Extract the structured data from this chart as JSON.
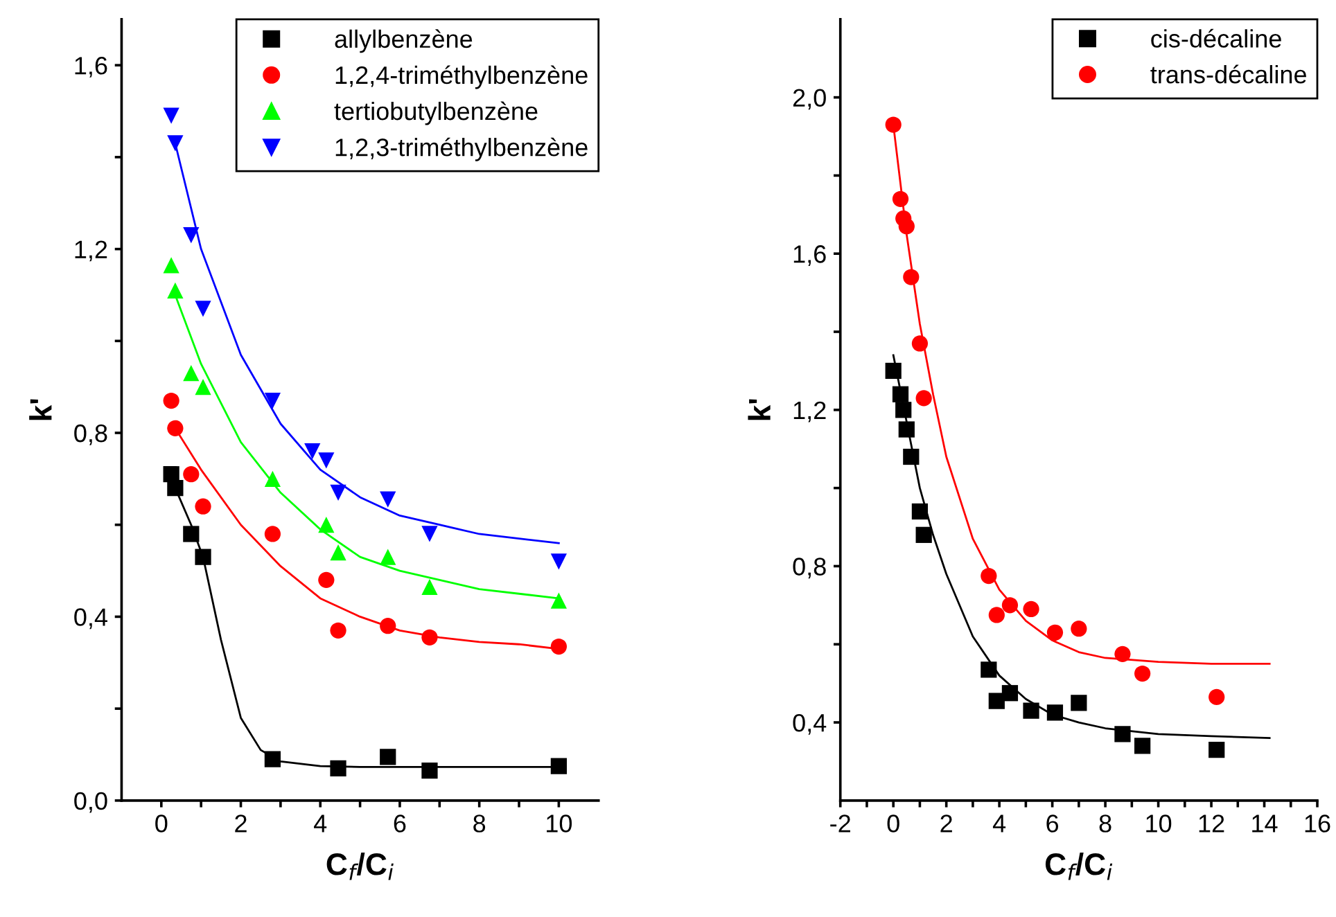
{
  "chart_data": [
    {
      "type": "scatter",
      "xlabel": "C$_{f}$/C$_{i}$",
      "ylabel": "k'",
      "legend": "top right",
      "grid": false,
      "xlim": [
        -1,
        11
      ],
      "ylim": [
        0,
        1.7
      ],
      "xticks": [
        0,
        {
          "value": 1,
          "label": null
        },
        2,
        {
          "value": 3,
          "label": null
        },
        4,
        {
          "value": 5,
          "label": null
        },
        6,
        {
          "value": 7,
          "label": null
        },
        8,
        {
          "value": 9,
          "label": null
        },
        10
      ],
      "yticks": [
        {
          "value": 0,
          "label": "0,0"
        },
        {
          "value": 0.2,
          "label": null
        },
        {
          "value": 0.4,
          "label": "0,4"
        },
        {
          "value": 0.6,
          "label": null
        },
        {
          "value": 0.8,
          "label": "0,8"
        },
        {
          "value": 1.0,
          "label": null
        },
        {
          "value": 1.2,
          "label": "1,2"
        },
        {
          "value": 1.4,
          "label": null
        },
        {
          "value": 1.6,
          "label": "1,6"
        }
      ],
      "series": [
        {
          "name": "allylbenzène",
          "color": "#000000",
          "marker": "square",
          "x": [
            0.25,
            0.35,
            0.75,
            1.05,
            2.8,
            4.45,
            5.7,
            6.75,
            10
          ],
          "values": [
            0.71,
            0.68,
            0.58,
            0.53,
            0.09,
            0.07,
            0.095,
            0.065,
            0.075
          ]
        },
        {
          "name": "1,2,4-triméthylbenzène",
          "color": "#ff0000",
          "marker": "circle",
          "x": [
            0.25,
            0.35,
            0.75,
            1.05,
            2.8,
            4.15,
            4.45,
            5.7,
            6.75,
            10
          ],
          "values": [
            0.87,
            0.81,
            0.71,
            0.64,
            0.58,
            0.48,
            0.37,
            0.38,
            0.355,
            0.335
          ]
        },
        {
          "name": "tertiobutylbenzène",
          "color": "#00ff00",
          "marker": "triangle",
          "x": [
            0.25,
            0.35,
            0.75,
            1.05,
            2.8,
            4.15,
            4.45,
            5.7,
            6.75,
            10
          ],
          "values": [
            1.165,
            1.11,
            0.93,
            0.9,
            0.7,
            0.6,
            0.54,
            0.53,
            0.465,
            0.435
          ]
        },
        {
          "name": "1,2,3-triméthylbenzène",
          "color": "#0000ff",
          "marker": "triangle_down",
          "x": [
            0.25,
            0.35,
            0.75,
            1.05,
            2.8,
            3.8,
            4.15,
            4.45,
            5.7,
            6.75,
            10
          ],
          "values": [
            1.49,
            1.43,
            1.23,
            1.07,
            0.87,
            0.76,
            0.74,
            0.67,
            0.655,
            0.58,
            0.52
          ]
        },
        {
          "type": "line",
          "color": "#000000",
          "x": [
            0.35,
            0.75,
            1.05,
            1.5,
            2,
            2.5,
            3,
            4,
            5,
            10
          ],
          "values": [
            0.68,
            0.6,
            0.53,
            0.35,
            0.18,
            0.11,
            0.085,
            0.075,
            0.073,
            0.073
          ]
        },
        {
          "type": "line",
          "color": "#ff0000",
          "x": [
            0.35,
            1,
            2,
            3,
            4,
            5,
            6,
            7,
            8,
            9,
            10
          ],
          "values": [
            0.81,
            0.72,
            0.6,
            0.51,
            0.44,
            0.4,
            0.37,
            0.355,
            0.345,
            0.34,
            0.33
          ]
        },
        {
          "type": "line",
          "color": "#00ff00",
          "x": [
            0.35,
            1,
            2,
            3,
            4,
            5,
            6,
            7,
            8,
            9,
            10
          ],
          "values": [
            1.1,
            0.95,
            0.78,
            0.67,
            0.59,
            0.53,
            0.5,
            0.48,
            0.46,
            0.45,
            0.44
          ]
        },
        {
          "type": "line",
          "color": "#0000ff",
          "x": [
            0.35,
            1,
            2,
            3,
            4,
            5,
            6,
            7,
            8,
            9,
            10
          ],
          "values": [
            1.43,
            1.2,
            0.97,
            0.82,
            0.72,
            0.66,
            0.62,
            0.6,
            0.58,
            0.57,
            0.56
          ]
        }
      ]
    },
    {
      "type": "scatter",
      "xlabel": "C$_{f}$/C$_{i}$",
      "ylabel": "k'",
      "legend": "top right",
      "grid": false,
      "xlim": [
        -2,
        16
      ],
      "ylim": [
        0.2,
        2.2
      ],
      "xticks": [
        -2,
        {
          "value": -1,
          "label": null
        },
        0,
        {
          "value": 1,
          "label": null
        },
        2,
        {
          "value": 3,
          "label": null
        },
        4,
        {
          "value": 5,
          "label": null
        },
        6,
        {
          "value": 7,
          "label": null
        },
        8,
        {
          "value": 9,
          "label": null
        },
        10,
        {
          "value": 11,
          "label": null
        },
        12,
        {
          "value": 13,
          "label": null
        },
        14,
        {
          "value": 15,
          "label": null
        },
        16
      ],
      "yticks": [
        {
          "value": 0.4,
          "label": "0,4"
        },
        {
          "value": 0.6,
          "label": null
        },
        {
          "value": 0.8,
          "label": "0,8"
        },
        {
          "value": 1.0,
          "label": null
        },
        {
          "value": 1.2,
          "label": "1,2"
        },
        {
          "value": 1.4,
          "label": null
        },
        {
          "value": 1.6,
          "label": "1,6"
        },
        {
          "value": 1.8,
          "label": null
        },
        {
          "value": 2.0,
          "label": "2,0"
        }
      ],
      "series": [
        {
          "name": "cis-décaline",
          "color": "#000000",
          "marker": "square",
          "x": [
            0,
            0.27,
            0.38,
            0.5,
            0.67,
            1.0,
            1.15,
            3.6,
            3.9,
            4.4,
            5.2,
            6.1,
            7.0,
            8.65,
            9.4,
            12.2
          ],
          "values": [
            1.3,
            1.24,
            1.2,
            1.15,
            1.08,
            0.94,
            0.88,
            0.535,
            0.455,
            0.475,
            0.43,
            0.425,
            0.45,
            0.37,
            0.34,
            0.33
          ]
        },
        {
          "name": "trans-décaline",
          "color": "#ff0000",
          "marker": "circle",
          "x": [
            0,
            0.27,
            0.38,
            0.5,
            0.67,
            1.0,
            1.15,
            3.6,
            3.9,
            4.4,
            5.2,
            6.1,
            7.0,
            8.65,
            9.4,
            12.2
          ],
          "values": [
            1.93,
            1.74,
            1.69,
            1.67,
            1.54,
            1.37,
            1.23,
            0.775,
            0.675,
            0.7,
            0.69,
            0.63,
            0.64,
            0.575,
            0.525,
            0.465
          ]
        },
        {
          "type": "line",
          "color": "#000000",
          "x": [
            0,
            0.5,
            1,
            1.5,
            2,
            3,
            4,
            5,
            6,
            7,
            8,
            10,
            12,
            14.2
          ],
          "values": [
            1.34,
            1.17,
            1.0,
            0.88,
            0.78,
            0.62,
            0.52,
            0.46,
            0.42,
            0.4,
            0.385,
            0.37,
            0.365,
            0.36
          ]
        },
        {
          "type": "line",
          "color": "#ff0000",
          "x": [
            0,
            0.5,
            1,
            1.5,
            2,
            3,
            4,
            5,
            6,
            7,
            8,
            10,
            12,
            14.2
          ],
          "values": [
            1.93,
            1.65,
            1.42,
            1.24,
            1.08,
            0.87,
            0.74,
            0.66,
            0.61,
            0.58,
            0.565,
            0.555,
            0.55,
            0.55
          ]
        }
      ]
    }
  ]
}
